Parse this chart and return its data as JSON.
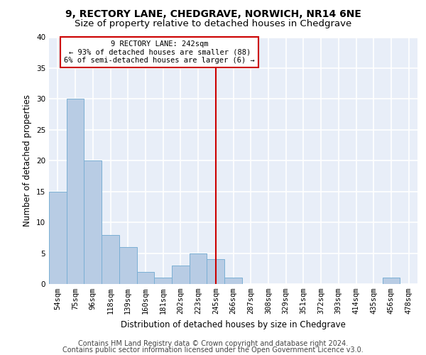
{
  "title_line1": "9, RECTORY LANE, CHEDGRAVE, NORWICH, NR14 6NE",
  "title_line2": "Size of property relative to detached houses in Chedgrave",
  "xlabel": "Distribution of detached houses by size in Chedgrave",
  "ylabel": "Number of detached properties",
  "categories": [
    "54sqm",
    "75sqm",
    "96sqm",
    "118sqm",
    "139sqm",
    "160sqm",
    "181sqm",
    "202sqm",
    "223sqm",
    "245sqm",
    "266sqm",
    "287sqm",
    "308sqm",
    "329sqm",
    "351sqm",
    "372sqm",
    "393sqm",
    "414sqm",
    "435sqm",
    "456sqm",
    "478sqm"
  ],
  "values": [
    15,
    30,
    20,
    8,
    6,
    2,
    1,
    3,
    5,
    4,
    1,
    0,
    0,
    0,
    0,
    0,
    0,
    0,
    0,
    1,
    0
  ],
  "bar_color": "#b8cce4",
  "bar_edge_color": "#7bafd4",
  "vline_x": 9.0,
  "vline_color": "#cc0000",
  "annotation_text": "9 RECTORY LANE: 242sqm\n← 93% of detached houses are smaller (88)\n6% of semi-detached houses are larger (6) →",
  "annotation_box_color": "#ffffff",
  "annotation_box_edge": "#cc0000",
  "ylim": [
    0,
    40
  ],
  "yticks": [
    0,
    5,
    10,
    15,
    20,
    25,
    30,
    35,
    40
  ],
  "background_color": "#e8eef8",
  "grid_color": "#ffffff",
  "footer_line1": "Contains HM Land Registry data © Crown copyright and database right 2024.",
  "footer_line2": "Contains public sector information licensed under the Open Government Licence v3.0.",
  "title_fontsize": 10,
  "subtitle_fontsize": 9.5,
  "axis_label_fontsize": 8.5,
  "tick_fontsize": 7.5,
  "footer_fontsize": 7
}
